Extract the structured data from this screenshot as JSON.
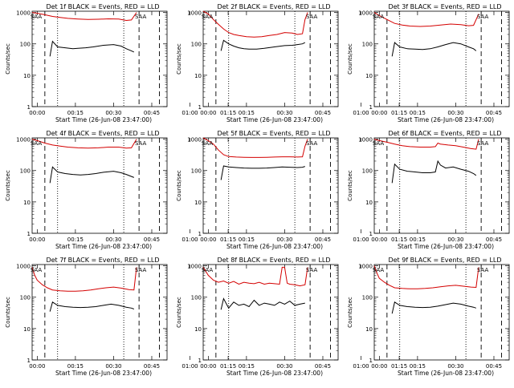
{
  "figure": {
    "xlabel": "Start Time (26-Jun-08 23:47:00)",
    "ylabel": "Counts/sec",
    "x_ticks": [
      "00:00",
      "00:15",
      "00:30",
      "00:45",
      "01:00",
      "01:15"
    ],
    "x_range_minutes": [
      -8,
      45
    ],
    "y_ticks": [
      "1",
      "10",
      "100",
      "1000"
    ],
    "ylim": [
      1,
      1100
    ],
    "y_scale": "log",
    "saa_label": "SAA",
    "colors": {
      "events": "#000000",
      "lld": "#d40000",
      "axes": "#000000"
    }
  },
  "chart_data": [
    {
      "type": "line",
      "title": "Det 1f BLACK = Events, RED = LLD",
      "dashed_lines_min": [
        -3,
        34,
        42
      ],
      "dotted_lines_min": [
        2,
        28
      ],
      "series": [
        {
          "name": "Events",
          "color": "#000000",
          "x": [
            -2,
            -1,
            0,
            2,
            5,
            8,
            10,
            13,
            16,
            20,
            24,
            27,
            29,
            31,
            32
          ],
          "values": [
            null,
            40,
            120,
            80,
            75,
            70,
            72,
            75,
            80,
            90,
            95,
            85,
            70,
            60,
            55
          ]
        },
        {
          "name": "LLD",
          "color": "#d40000",
          "x": [
            -8,
            -6,
            -3,
            0,
            3,
            6,
            10,
            14,
            18,
            22,
            26,
            29,
            31,
            33
          ],
          "values": [
            1000,
            950,
            850,
            750,
            700,
            650,
            620,
            600,
            610,
            630,
            620,
            560,
            580,
            1000
          ]
        }
      ]
    },
    {
      "type": "line",
      "title": "Det 2f BLACK = Events, RED = LLD",
      "dashed_lines_min": [
        -3,
        34,
        42
      ],
      "dotted_lines_min": [
        2,
        28
      ],
      "series": [
        {
          "name": "Events",
          "color": "#000000",
          "x": [
            -1,
            0,
            2,
            4,
            6,
            8,
            10,
            13,
            16,
            20,
            24,
            27,
            29,
            31,
            32
          ],
          "values": [
            60,
            130,
            100,
            85,
            75,
            70,
            68,
            68,
            72,
            80,
            88,
            90,
            95,
            100,
            110
          ]
        },
        {
          "name": "LLD",
          "color": "#d40000",
          "x": [
            -8,
            -6,
            -4,
            -2,
            0,
            2,
            4,
            6,
            9,
            12,
            15,
            18,
            21,
            24,
            27,
            29,
            31,
            32,
            33
          ],
          "values": [
            1200,
            900,
            600,
            420,
            300,
            230,
            200,
            185,
            170,
            165,
            170,
            185,
            200,
            230,
            220,
            200,
            210,
            600,
            1000
          ]
        }
      ]
    },
    {
      "type": "line",
      "title": "Det 3f BLACK = Events, RED = LLD",
      "dashed_lines_min": [
        -3,
        34,
        42
      ],
      "dotted_lines_min": [
        2,
        28
      ],
      "series": [
        {
          "name": "Events",
          "color": "#000000",
          "x": [
            -1,
            0,
            2,
            5,
            8,
            11,
            14,
            17,
            20,
            23,
            26,
            29,
            31,
            32
          ],
          "values": [
            40,
            110,
            80,
            70,
            68,
            66,
            70,
            80,
            95,
            110,
            100,
            80,
            70,
            60
          ]
        },
        {
          "name": "LLD",
          "color": "#d40000",
          "x": [
            -8,
            -6,
            -3,
            0,
            3,
            6,
            10,
            14,
            18,
            22,
            26,
            29,
            31,
            33
          ],
          "values": [
            1000,
            800,
            600,
            450,
            400,
            370,
            360,
            370,
            400,
            430,
            410,
            380,
            390,
            900
          ]
        }
      ]
    },
    {
      "type": "line",
      "title": "Det 4f BLACK = Events, RED = LLD",
      "dashed_lines_min": [
        -3,
        34,
        42
      ],
      "dotted_lines_min": [
        2,
        28
      ],
      "series": [
        {
          "name": "Events",
          "color": "#000000",
          "x": [
            -2,
            -1,
            0,
            2,
            5,
            8,
            11,
            14,
            17,
            20,
            24,
            27,
            29,
            31,
            32
          ],
          "values": [
            null,
            40,
            130,
            90,
            80,
            75,
            72,
            75,
            80,
            88,
            95,
            85,
            75,
            65,
            60
          ]
        },
        {
          "name": "LLD",
          "color": "#d40000",
          "x": [
            -8,
            -6,
            -3,
            0,
            3,
            6,
            10,
            14,
            18,
            22,
            26,
            29,
            31,
            33
          ],
          "values": [
            1000,
            900,
            750,
            650,
            600,
            560,
            530,
            520,
            530,
            560,
            560,
            520,
            530,
            1000
          ]
        }
      ]
    },
    {
      "type": "line",
      "title": "Det 5f BLACK = Events, RED = LLD",
      "dashed_lines_min": [
        -3,
        34,
        42
      ],
      "dotted_lines_min": [
        2,
        28
      ],
      "series": [
        {
          "name": "Events",
          "color": "#000000",
          "x": [
            -1,
            0,
            2,
            5,
            8,
            11,
            14,
            17,
            20,
            23,
            26,
            29,
            31,
            32
          ],
          "values": [
            50,
            140,
            130,
            125,
            120,
            118,
            118,
            120,
            125,
            130,
            128,
            125,
            128,
            135
          ]
        },
        {
          "name": "LLD",
          "color": "#d40000",
          "x": [
            -8,
            -6,
            -4,
            -2,
            0,
            2,
            5,
            8,
            11,
            14,
            17,
            20,
            23,
            26,
            29,
            31,
            32,
            33
          ],
          "values": [
            1100,
            900,
            700,
            450,
            320,
            280,
            270,
            265,
            262,
            262,
            265,
            270,
            275,
            275,
            270,
            275,
            600,
            1000
          ]
        }
      ]
    },
    {
      "type": "line",
      "title": "Det 6f BLACK = Events, RED = LLD",
      "dashed_lines_min": [
        -3,
        34,
        42
      ],
      "dotted_lines_min": [
        2,
        28
      ],
      "series": [
        {
          "name": "Events",
          "color": "#000000",
          "x": [
            -1,
            0,
            2,
            5,
            8,
            11,
            14,
            16,
            17,
            18,
            20,
            23,
            26,
            29,
            31,
            32
          ],
          "values": [
            40,
            160,
            110,
            95,
            90,
            85,
            85,
            90,
            200,
            150,
            120,
            130,
            110,
            95,
            80,
            70
          ]
        },
        {
          "name": "LLD",
          "color": "#d40000",
          "x": [
            -8,
            -6,
            -3,
            0,
            3,
            6,
            10,
            14,
            16,
            17,
            18,
            21,
            24,
            27,
            30,
            32,
            33
          ],
          "values": [
            1000,
            900,
            800,
            700,
            620,
            580,
            560,
            560,
            580,
            750,
            700,
            650,
            620,
            560,
            500,
            480,
            1000
          ]
        }
      ]
    },
    {
      "type": "line",
      "title": "Det 7f BLACK = Events, RED = LLD",
      "dashed_lines_min": [
        -3,
        34,
        42
      ],
      "dotted_lines_min": [
        2,
        28
      ],
      "series": [
        {
          "name": "Events",
          "color": "#000000",
          "x": [
            -1,
            0,
            2,
            5,
            8,
            11,
            14,
            17,
            20,
            23,
            26,
            29,
            31,
            32
          ],
          "values": [
            35,
            70,
            55,
            50,
            48,
            47,
            48,
            50,
            55,
            60,
            55,
            48,
            45,
            42
          ]
        },
        {
          "name": "LLD",
          "color": "#d40000",
          "x": [
            -8,
            -7,
            -6,
            -4,
            -2,
            0,
            3,
            6,
            9,
            12,
            15,
            18,
            21,
            24,
            27,
            30,
            32,
            33
          ],
          "values": [
            900,
            500,
            350,
            250,
            200,
            170,
            160,
            155,
            155,
            160,
            170,
            185,
            200,
            210,
            195,
            175,
            170,
            900
          ]
        }
      ]
    },
    {
      "type": "line",
      "title": "Det 8f BLACK = Events, RED = LLD",
      "dashed_lines_min": [
        -3,
        34,
        42
      ],
      "dotted_lines_min": [
        2,
        28
      ],
      "series": [
        {
          "name": "Events",
          "color": "#000000",
          "x": [
            -1,
            0,
            2,
            4,
            6,
            8,
            10,
            12,
            14,
            16,
            18,
            20,
            22,
            24,
            26,
            28,
            30,
            32
          ],
          "values": [
            40,
            90,
            45,
            70,
            55,
            60,
            50,
            80,
            55,
            65,
            60,
            55,
            70,
            60,
            75,
            55,
            60,
            65
          ]
        },
        {
          "name": "LLD",
          "color": "#d40000",
          "x": [
            -8,
            -6,
            -4,
            -2,
            0,
            2,
            4,
            6,
            8,
            10,
            12,
            14,
            16,
            18,
            20,
            22,
            23,
            24,
            25,
            26,
            28,
            30,
            32,
            33
          ],
          "values": [
            900,
            500,
            350,
            300,
            330,
            280,
            320,
            260,
            300,
            280,
            270,
            300,
            260,
            280,
            270,
            260,
            900,
            900,
            280,
            260,
            250,
            230,
            250,
            900
          ]
        }
      ]
    },
    {
      "type": "line",
      "title": "Det 9f BLACK = Events, RED = LLD",
      "dashed_lines_min": [
        -3,
        34,
        42
      ],
      "dotted_lines_min": [
        2,
        28
      ],
      "series": [
        {
          "name": "Events",
          "color": "#000000",
          "x": [
            -1,
            0,
            2,
            5,
            8,
            11,
            14,
            17,
            20,
            23,
            26,
            29,
            31,
            32
          ],
          "values": [
            30,
            70,
            55,
            50,
            48,
            47,
            48,
            52,
            58,
            65,
            60,
            52,
            48,
            45
          ]
        },
        {
          "name": "LLD",
          "color": "#d40000",
          "x": [
            -8,
            -7,
            -6,
            -4,
            -2,
            0,
            3,
            6,
            9,
            12,
            15,
            18,
            21,
            24,
            27,
            30,
            32,
            33
          ],
          "values": [
            1000,
            600,
            400,
            300,
            240,
            200,
            190,
            185,
            185,
            190,
            200,
            215,
            230,
            240,
            225,
            210,
            205,
            900
          ]
        }
      ]
    }
  ]
}
